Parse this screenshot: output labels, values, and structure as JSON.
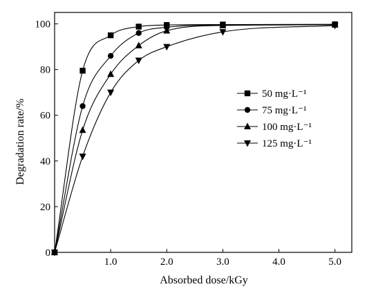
{
  "chart_data": {
    "type": "scatter",
    "xlabel": "Absorbed dose/kGy",
    "ylabel": "Degradation rate/%",
    "xlim": [
      0,
      5.3
    ],
    "ylim": [
      0,
      105
    ],
    "x_ticks": [
      {
        "value": 1.0,
        "label": "1.0"
      },
      {
        "value": 2.0,
        "label": "2.0"
      },
      {
        "value": 3.0,
        "label": "3.0"
      },
      {
        "value": 4.0,
        "label": "4.0"
      },
      {
        "value": 5.0,
        "label": "5.0"
      }
    ],
    "y_ticks": [
      {
        "value": 0,
        "label": "0"
      },
      {
        "value": 20,
        "label": "20"
      },
      {
        "value": 40,
        "label": "40"
      },
      {
        "value": 60,
        "label": "60"
      },
      {
        "value": 80,
        "label": "80"
      },
      {
        "value": 100,
        "label": "100"
      }
    ],
    "grid": false,
    "legend_position": "right",
    "series": [
      {
        "name": "50 mg·L⁻¹",
        "marker": "square",
        "x": [
          0,
          0.5,
          1.0,
          1.5,
          2.0,
          3.0,
          5.0
        ],
        "y": [
          0,
          79.5,
          95.0,
          98.8,
          99.5,
          99.7,
          99.8
        ]
      },
      {
        "name": "75 mg·L⁻¹",
        "marker": "circle",
        "x": [
          0,
          0.5,
          1.0,
          1.5,
          2.0,
          3.0,
          5.0
        ],
        "y": [
          0,
          64.0,
          86.0,
          96.0,
          98.5,
          99.5,
          99.7
        ]
      },
      {
        "name": "100 mg·L⁻¹",
        "marker": "triangle-up",
        "x": [
          0,
          0.5,
          1.0,
          1.5,
          2.0,
          3.0,
          5.0
        ],
        "y": [
          0,
          53.5,
          78.0,
          90.5,
          97.0,
          99.3,
          99.6
        ]
      },
      {
        "name": "125 mg·L⁻¹",
        "marker": "triangle-down",
        "x": [
          0,
          0.5,
          1.0,
          1.5,
          2.0,
          3.0,
          5.0
        ],
        "y": [
          0,
          42.0,
          70.0,
          84.0,
          90.0,
          96.5,
          99.3
        ]
      }
    ]
  }
}
